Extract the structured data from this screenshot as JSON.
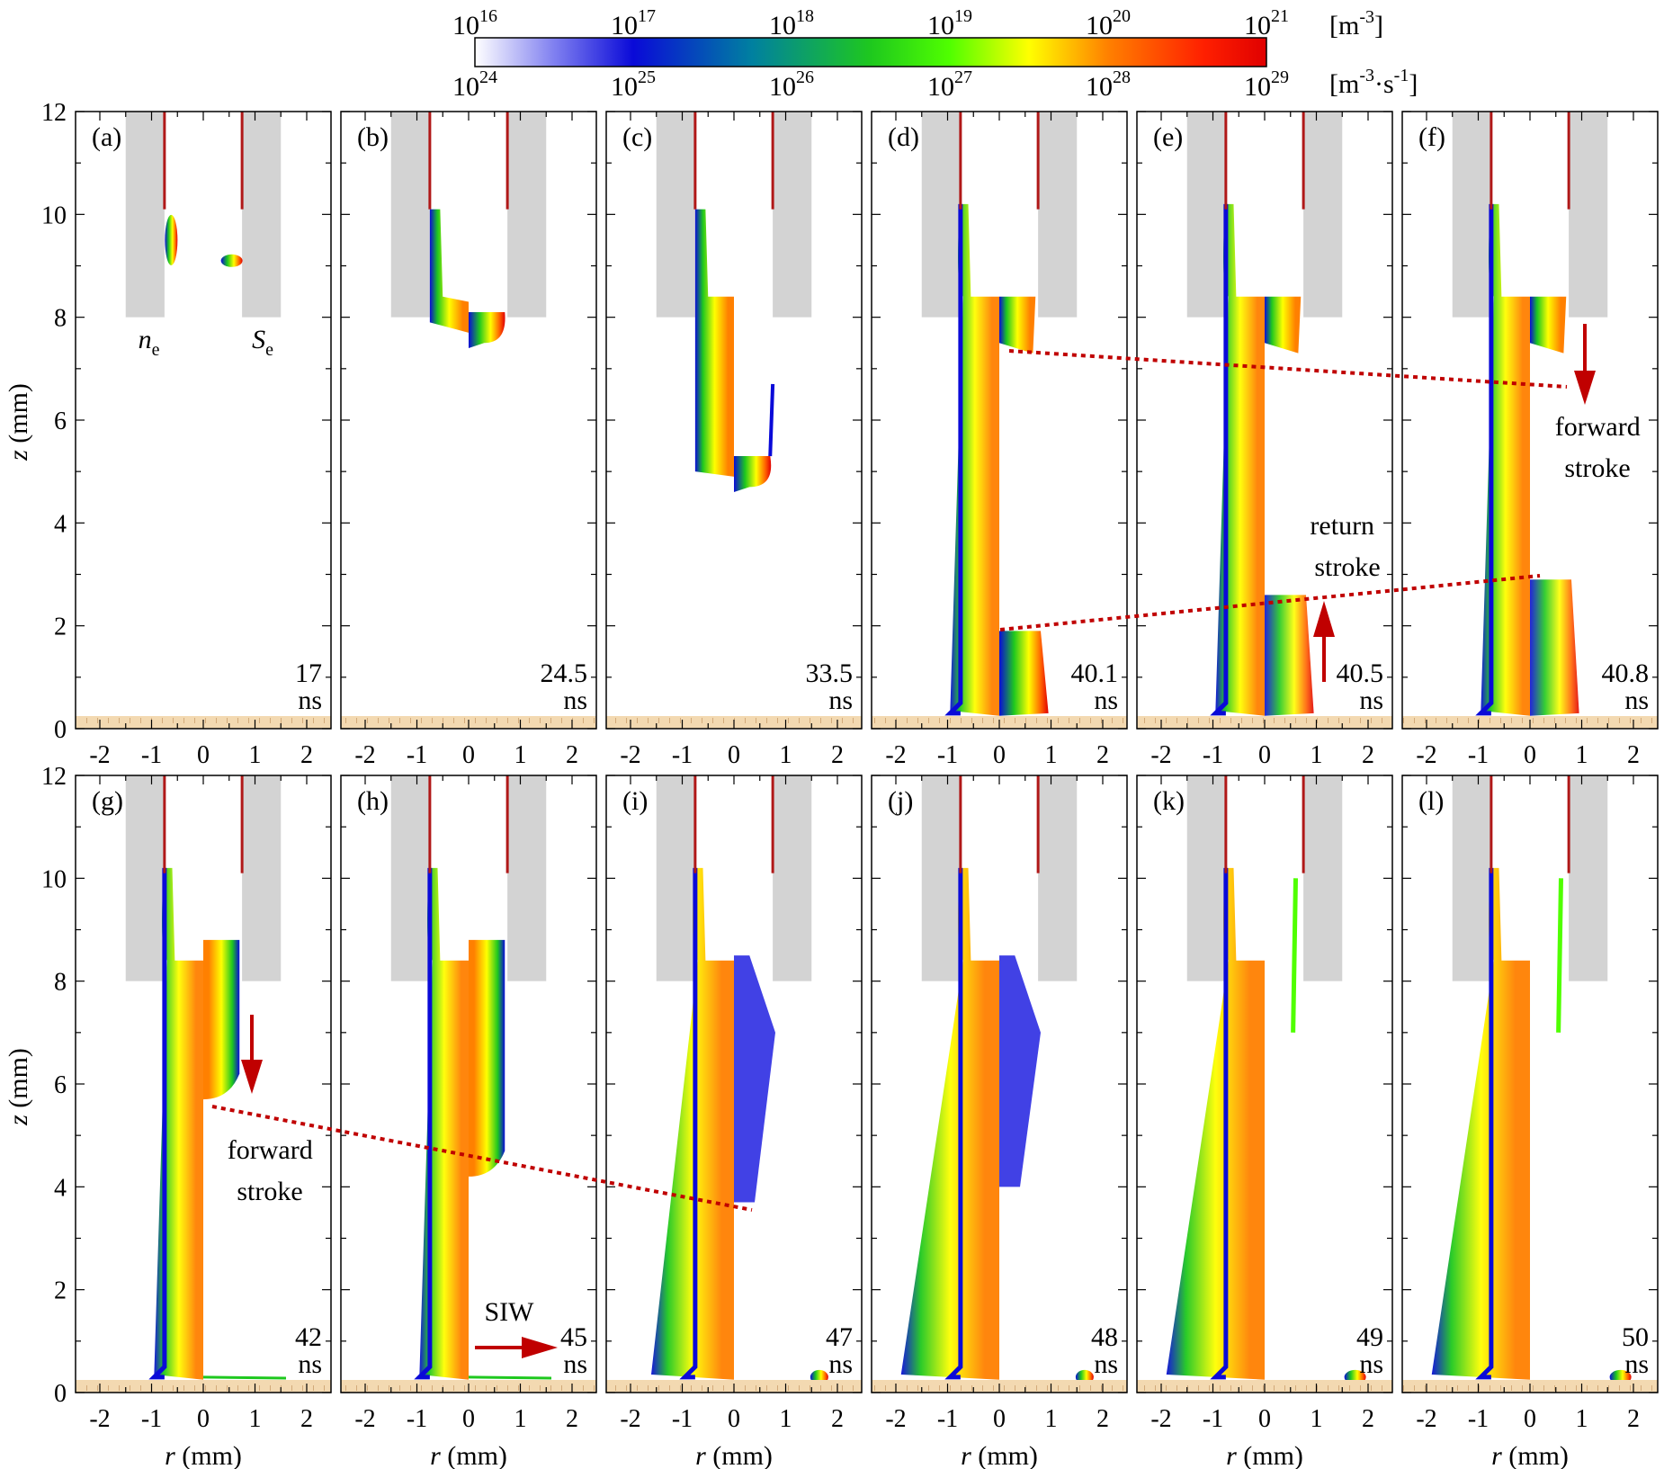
{
  "figure": {
    "colorbar": {
      "top_ticks": [
        {
          "base": "10",
          "exp": "16"
        },
        {
          "base": "10",
          "exp": "17"
        },
        {
          "base": "10",
          "exp": "18"
        },
        {
          "base": "10",
          "exp": "19"
        },
        {
          "base": "10",
          "exp": "20"
        },
        {
          "base": "10",
          "exp": "21"
        }
      ],
      "bottom_ticks": [
        {
          "base": "10",
          "exp": "24"
        },
        {
          "base": "10",
          "exp": "25"
        },
        {
          "base": "10",
          "exp": "26"
        },
        {
          "base": "10",
          "exp": "27"
        },
        {
          "base": "10",
          "exp": "28"
        },
        {
          "base": "10",
          "exp": "29"
        }
      ],
      "top_unit": {
        "open": "[m",
        "exp": "-3",
        "close": "]"
      },
      "bottom_unit": {
        "open": "[m",
        "exp1": "-3",
        "mid": "·s",
        "exp2": "-1",
        "close": "]"
      },
      "colors": [
        "#ffffff",
        "#8080f0",
        "#0a0ad8",
        "#0080a0",
        "#1ec81e",
        "#50ff00",
        "#ffff00",
        "#ff8000",
        "#ff2000",
        "#e00000"
      ]
    },
    "axes": {
      "z_label": {
        "var": "z",
        "unit": " (mm)"
      },
      "r_label": {
        "var": "r",
        "unit": " (mm)"
      },
      "z_ticks": [
        "0",
        "2",
        "4",
        "6",
        "8",
        "10",
        "12"
      ],
      "r_ticks": [
        "-2",
        "-1",
        "0",
        "1",
        "2"
      ]
    },
    "density_labels": {
      "ne": {
        "base": "n",
        "sub": "e"
      },
      "se": {
        "base": "S",
        "sub": "e"
      }
    },
    "panels": [
      {
        "letter": "(a)",
        "time": "17",
        "unit": "ns"
      },
      {
        "letter": "(b)",
        "time": "24.5",
        "unit": "ns"
      },
      {
        "letter": "(c)",
        "time": "33.5",
        "unit": "ns"
      },
      {
        "letter": "(d)",
        "time": "40.1",
        "unit": "ns"
      },
      {
        "letter": "(e)",
        "time": "40.5",
        "unit": "ns"
      },
      {
        "letter": "(f)",
        "time": "40.8",
        "unit": "ns"
      },
      {
        "letter": "(g)",
        "time": "42",
        "unit": "ns"
      },
      {
        "letter": "(h)",
        "time": "45",
        "unit": "ns"
      },
      {
        "letter": "(i)",
        "time": "47",
        "unit": "ns"
      },
      {
        "letter": "(j)",
        "time": "48",
        "unit": "ns"
      },
      {
        "letter": "(k)",
        "time": "49",
        "unit": "ns"
      },
      {
        "letter": "(l)",
        "time": "50",
        "unit": "ns"
      }
    ],
    "annotations": {
      "forward_stroke_top": [
        "forward",
        "stroke"
      ],
      "return_stroke": [
        "return",
        "stroke"
      ],
      "forward_stroke_bottom": [
        "forward",
        "stroke"
      ],
      "siw": "SIW"
    }
  }
}
